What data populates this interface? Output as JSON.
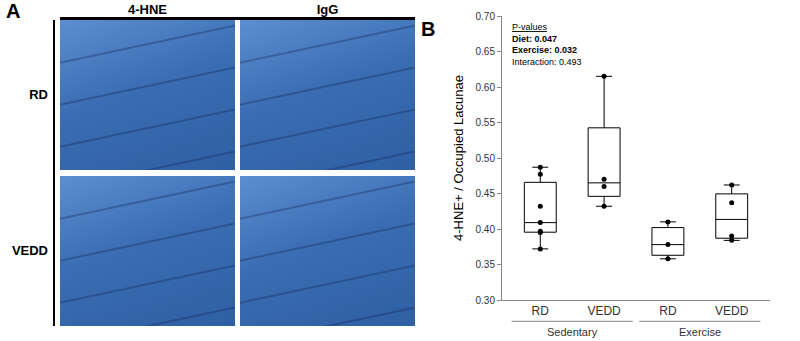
{
  "panel_a": {
    "label": "A",
    "columns": [
      "4-HNE",
      "IgG"
    ],
    "rows": [
      "RD",
      "VEDD"
    ]
  },
  "chart_data": {
    "type": "box",
    "panel": "B",
    "categories": [
      "RD",
      "VEDD",
      "RD",
      "VEDD"
    ],
    "groups": [
      "Sedentary",
      "Sedentary",
      "Exercise",
      "Exercise"
    ],
    "values": [
      [
        0.487,
        0.477,
        0.432,
        0.409,
        0.397,
        0.395,
        0.372
      ],
      [
        0.615,
        0.47,
        0.46,
        0.432
      ],
      [
        0.41,
        0.378,
        0.358
      ],
      [
        0.462,
        0.437,
        0.39,
        0.384
      ]
    ],
    "color": "#000000",
    "ylabel": "4-HNE+ / Occupied Lacunae",
    "ylim": [
      0.3,
      0.7
    ],
    "yticks": [
      {
        "value": 0.3,
        "label": "0.30"
      },
      0.35,
      {
        "value": 0.4,
        "label": "0.40"
      },
      0.45,
      {
        "value": 0.5,
        "label": "0.50"
      },
      0.55,
      {
        "value": 0.6,
        "label": "0.60"
      },
      0.65,
      {
        "value": 0.7,
        "label": "0.70"
      }
    ],
    "grid": false,
    "annotations": [
      "P-values",
      "Diet: 0.047",
      "Exercise: 0.032",
      "Interaction: 0.493"
    ]
  }
}
